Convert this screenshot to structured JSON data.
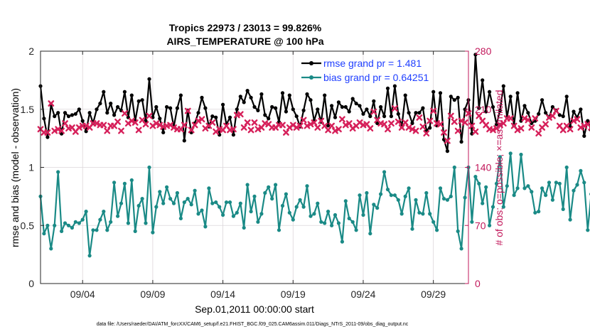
{
  "chart_data": {
    "type": "line",
    "title": "Tropics 22973 / 23013 = 99.826%",
    "subtitle": "AIRS_TEMPERATURE @ 100 hPa",
    "xlabel": "Sep.01,2011 00:00:00 start",
    "ylabel_left": "rmse and bias (model - observation)",
    "ylabel_right": "# of obs: o=possible; ×=assimilated",
    "footnote": "data file: /Users/raeder/DAI/ATM_forcXX/CAM6_setup/f.e21.FHIST_BGC.f09_025.CAM6assim.011/Diags_NTrS_2011-09/obs_diag_output.nc",
    "x_units": "days since Sep.01,2011 00:00",
    "xlim": [
      0,
      30.5
    ],
    "ylim_left": [
      0,
      2
    ],
    "ylim_right": [
      0,
      280
    ],
    "x_ticks": [
      3,
      8,
      13,
      18,
      23,
      28
    ],
    "x_tick_labels": [
      "09/04",
      "09/09",
      "09/14",
      "09/19",
      "09/24",
      "09/29"
    ],
    "y_left_ticks": [
      0,
      0.5,
      1,
      1.5,
      2
    ],
    "y_left_tick_labels": [
      "0",
      "0.5",
      "1",
      "1.5",
      "2"
    ],
    "y_right_ticks": [
      0,
      70,
      140,
      210,
      280
    ],
    "y_right_tick_labels": [
      "0",
      "70",
      "140",
      "210",
      "280"
    ],
    "grid": true,
    "legend": "top-right",
    "colors": {
      "rmse": "#000000",
      "bias": "#1a8a86",
      "obs": "#d6205a",
      "right_axis": "#c2185b",
      "legend_text": "#1f3fff"
    },
    "series": [
      {
        "name": "rmse grand pr = 1.481",
        "axis": "left",
        "step": 0.25,
        "values": [
          1.7,
          1.42,
          1.26,
          1.54,
          1.44,
          1.47,
          1.29,
          1.47,
          1.44,
          1.45,
          1.46,
          1.5,
          1.4,
          1.31,
          1.47,
          1.38,
          1.5,
          1.55,
          1.65,
          1.47,
          1.55,
          1.45,
          1.52,
          1.49,
          1.65,
          1.43,
          1.62,
          1.4,
          1.57,
          1.58,
          1.4,
          1.76,
          1.43,
          1.52,
          1.42,
          1.3,
          1.52,
          1.51,
          1.35,
          1.51,
          1.62,
          1.23,
          1.49,
          1.3,
          1.38,
          1.47,
          1.6,
          1.51,
          1.35,
          1.44,
          1.43,
          1.28,
          1.54,
          1.37,
          1.43,
          1.28,
          1.5,
          1.61,
          1.56,
          1.66,
          1.6,
          1.52,
          1.49,
          1.63,
          1.45,
          1.42,
          1.52,
          1.51,
          1.39,
          1.64,
          1.48,
          1.62,
          1.5,
          1.44,
          1.35,
          1.49,
          1.63,
          1.58,
          1.4,
          1.5,
          1.39,
          1.62,
          1.36,
          1.53,
          1.43,
          1.56,
          1.52,
          1.52,
          1.48,
          1.59,
          1.55,
          1.53,
          1.46,
          1.5,
          1.44,
          1.57,
          1.38,
          1.52,
          1.44,
          1.68,
          1.44,
          1.7,
          1.46,
          1.35,
          1.62,
          1.47,
          1.38,
          1.47,
          1.47,
          1.51,
          1.32,
          1.34,
          1.65,
          1.36,
          1.64,
          1.24,
          1.14,
          1.61,
          1.58,
          1.6,
          1.22,
          1.5,
          1.58,
          1.29,
          1.97,
          1.51,
          1.75,
          1.48,
          1.65,
          1.52,
          1.37,
          1.49,
          1.7,
          1.43,
          1.61,
          1.36,
          1.64,
          1.4,
          1.53,
          1.47,
          1.38,
          1.4,
          1.46,
          1.58,
          1.47,
          1.43,
          1.52,
          1.49,
          1.45,
          1.44,
          1.61,
          1.35,
          1.48,
          1.43,
          1.5,
          1.27,
          1.4,
          1.32,
          1.54,
          1.41,
          1.4,
          1.16,
          1.37,
          1.42,
          1.5,
          1.4,
          1.63,
          1.45,
          1.36,
          1.27,
          1.38,
          1.4
        ]
      },
      {
        "name": "bias grand pr = 0.64251",
        "axis": "left",
        "step": 0.25,
        "values": [
          0.75,
          0.43,
          0.5,
          0.3,
          0.5,
          0.96,
          0.45,
          0.52,
          0.5,
          0.48,
          0.53,
          0.52,
          0.55,
          0.62,
          0.24,
          0.46,
          0.46,
          0.55,
          0.62,
          0.46,
          0.53,
          0.87,
          0.58,
          0.69,
          0.86,
          0.52,
          0.89,
          0.45,
          0.67,
          0.73,
          0.52,
          1.0,
          0.44,
          0.66,
          0.79,
          0.69,
          0.83,
          0.73,
          0.69,
          0.78,
          0.56,
          0.7,
          0.73,
          0.68,
          0.8,
          0.6,
          0.63,
          0.49,
          0.82,
          0.69,
          0.7,
          0.66,
          0.59,
          0.7,
          0.7,
          0.58,
          0.61,
          0.69,
          0.48,
          0.85,
          0.62,
          0.75,
          0.53,
          0.6,
          0.78,
          0.83,
          0.73,
          0.85,
          0.46,
          0.67,
          0.77,
          0.61,
          0.55,
          0.66,
          0.72,
          0.66,
          0.84,
          0.58,
          0.6,
          0.69,
          0.53,
          0.52,
          0.62,
          0.5,
          0.59,
          0.52,
          0.36,
          0.71,
          0.56,
          0.53,
          0.46,
          0.76,
          0.59,
          0.78,
          0.43,
          0.68,
          0.65,
          0.77,
          0.96,
          0.81,
          0.76,
          0.76,
          0.72,
          0.6,
          0.75,
          0.82,
          0.47,
          0.72,
          0.61,
          0.6,
          0.78,
          0.6,
          0.53,
          0.46,
          0.82,
          0.73,
          0.72,
          0.75,
          1.0,
          0.45,
          0.3,
          0.74,
          1.0,
          0.53,
          0.92,
          0.86,
          0.69,
          0.83,
          0.5,
          0.66,
          0.86,
          1.09,
          0.66,
          0.84,
          1.12,
          0.76,
          0.82,
          1.11,
          0.82,
          0.84,
          0.79,
          0.61,
          0.62,
          0.82,
          0.76,
          0.87,
          0.72,
          0.87,
          0.86,
          0.64,
          1.0,
          0.55,
          0.8,
          0.85,
          0.97,
          0.87,
          0.46,
          0.77,
          0.55,
          0.35,
          0.85,
          0.92,
          0.42,
          0.28,
          0.83,
          0.53,
          0.4,
          0.37,
          0.51,
          0.33,
          0.57,
          0.64,
          0.65,
          0.71,
          0.79,
          0.69,
          0.68,
          0.53,
          0.47
        ]
      },
      {
        "name": "# of obs assimilated",
        "axis": "right",
        "marker": "x",
        "step": 0.25,
        "values": [
          186,
          182,
          182,
          217,
          184,
          186,
          184,
          193,
          187,
          188,
          183,
          188,
          190,
          190,
          188,
          193,
          193,
          191,
          191,
          184,
          190,
          190,
          195,
          184,
          205,
          193,
          196,
          194,
          185,
          197,
          192,
          202,
          190,
          193,
          191,
          189,
          190,
          191,
          188,
          186,
          186,
          191,
          208,
          185,
          191,
          196,
          198,
          187,
          190,
          194,
          183,
          186,
          185,
          190,
          185,
          186,
          203,
          204,
          188,
          194,
          185,
          194,
          186,
          188,
          193,
          192,
          188,
          188,
          191,
          191,
          182,
          188,
          191,
          188,
          190,
          197,
          190,
          192,
          194,
          188,
          196,
          190,
          185,
          190,
          184,
          186,
          198,
          191,
          193,
          187,
          190,
          194,
          191,
          192,
          187,
          207,
          197,
          193,
          192,
          186,
          193,
          211,
          195,
          188,
          194,
          188,
          186,
          184,
          200,
          189,
          181,
          196,
          208,
          193,
          192,
          182,
          172,
          202,
          195,
          184,
          196,
          194,
          205,
          190,
          183,
          202,
          196,
          191,
          186,
          185,
          187,
          191,
          193,
          199,
          199,
          190,
          185,
          187,
          199,
          197,
          188,
          199,
          181,
          188,
          192,
          200,
          202,
          208,
          190,
          185,
          190,
          186,
          196,
          198,
          188,
          190,
          192,
          188,
          200,
          190,
          186,
          185,
          194,
          191,
          195,
          197,
          193,
          186,
          190,
          184,
          188,
          196,
          185,
          189,
          187,
          193,
          192,
          190,
          182,
          179,
          139,
          114,
          99,
          181,
          194,
          0
        ]
      }
    ]
  },
  "labels": {
    "title": "Tropics 22973 / 23013 = 99.826%",
    "subtitle": "AIRS_TEMPERATURE @ 100 hPa",
    "xlabel": "Sep.01,2011 00:00:00 start",
    "ylabel_left": "rmse and bias (model - observation)",
    "ylabel_right": "# of obs: o=possible; ×=assimilated",
    "legend_rmse": "rmse grand pr = 1.481",
    "legend_bias": "bias grand pr = 0.64251",
    "footnote": "data file: /Users/raeder/DAI/ATM_forcXX/CAM6_setup/f.e21.FHIST_BGC.f09_025.CAM6assim.011/Diags_NTrS_2011-09/obs_diag_output.nc"
  }
}
